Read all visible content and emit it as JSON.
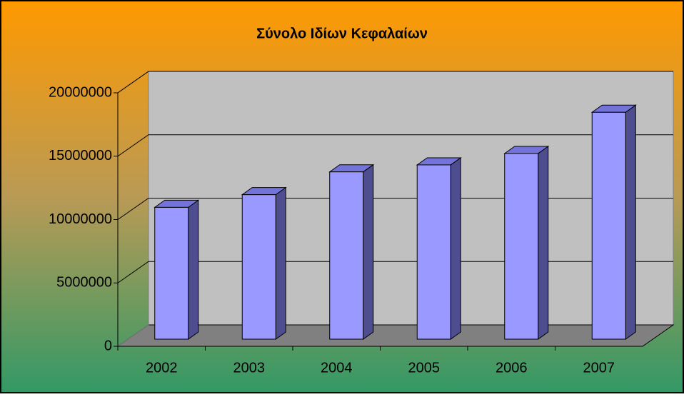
{
  "chart_data": {
    "type": "bar3d",
    "title": "Σύνολο Ιδίων Κεφαλαίων",
    "categories": [
      "2002",
      "2003",
      "2004",
      "2005",
      "2006",
      "2007"
    ],
    "values": [
      10400000,
      11400000,
      13200000,
      13750000,
      14650000,
      17900000
    ],
    "color": "#9999ff",
    "ylim": [
      0,
      20000000
    ],
    "yticks": [
      0,
      5000000,
      10000000,
      15000000,
      20000000
    ],
    "grid": true
  }
}
